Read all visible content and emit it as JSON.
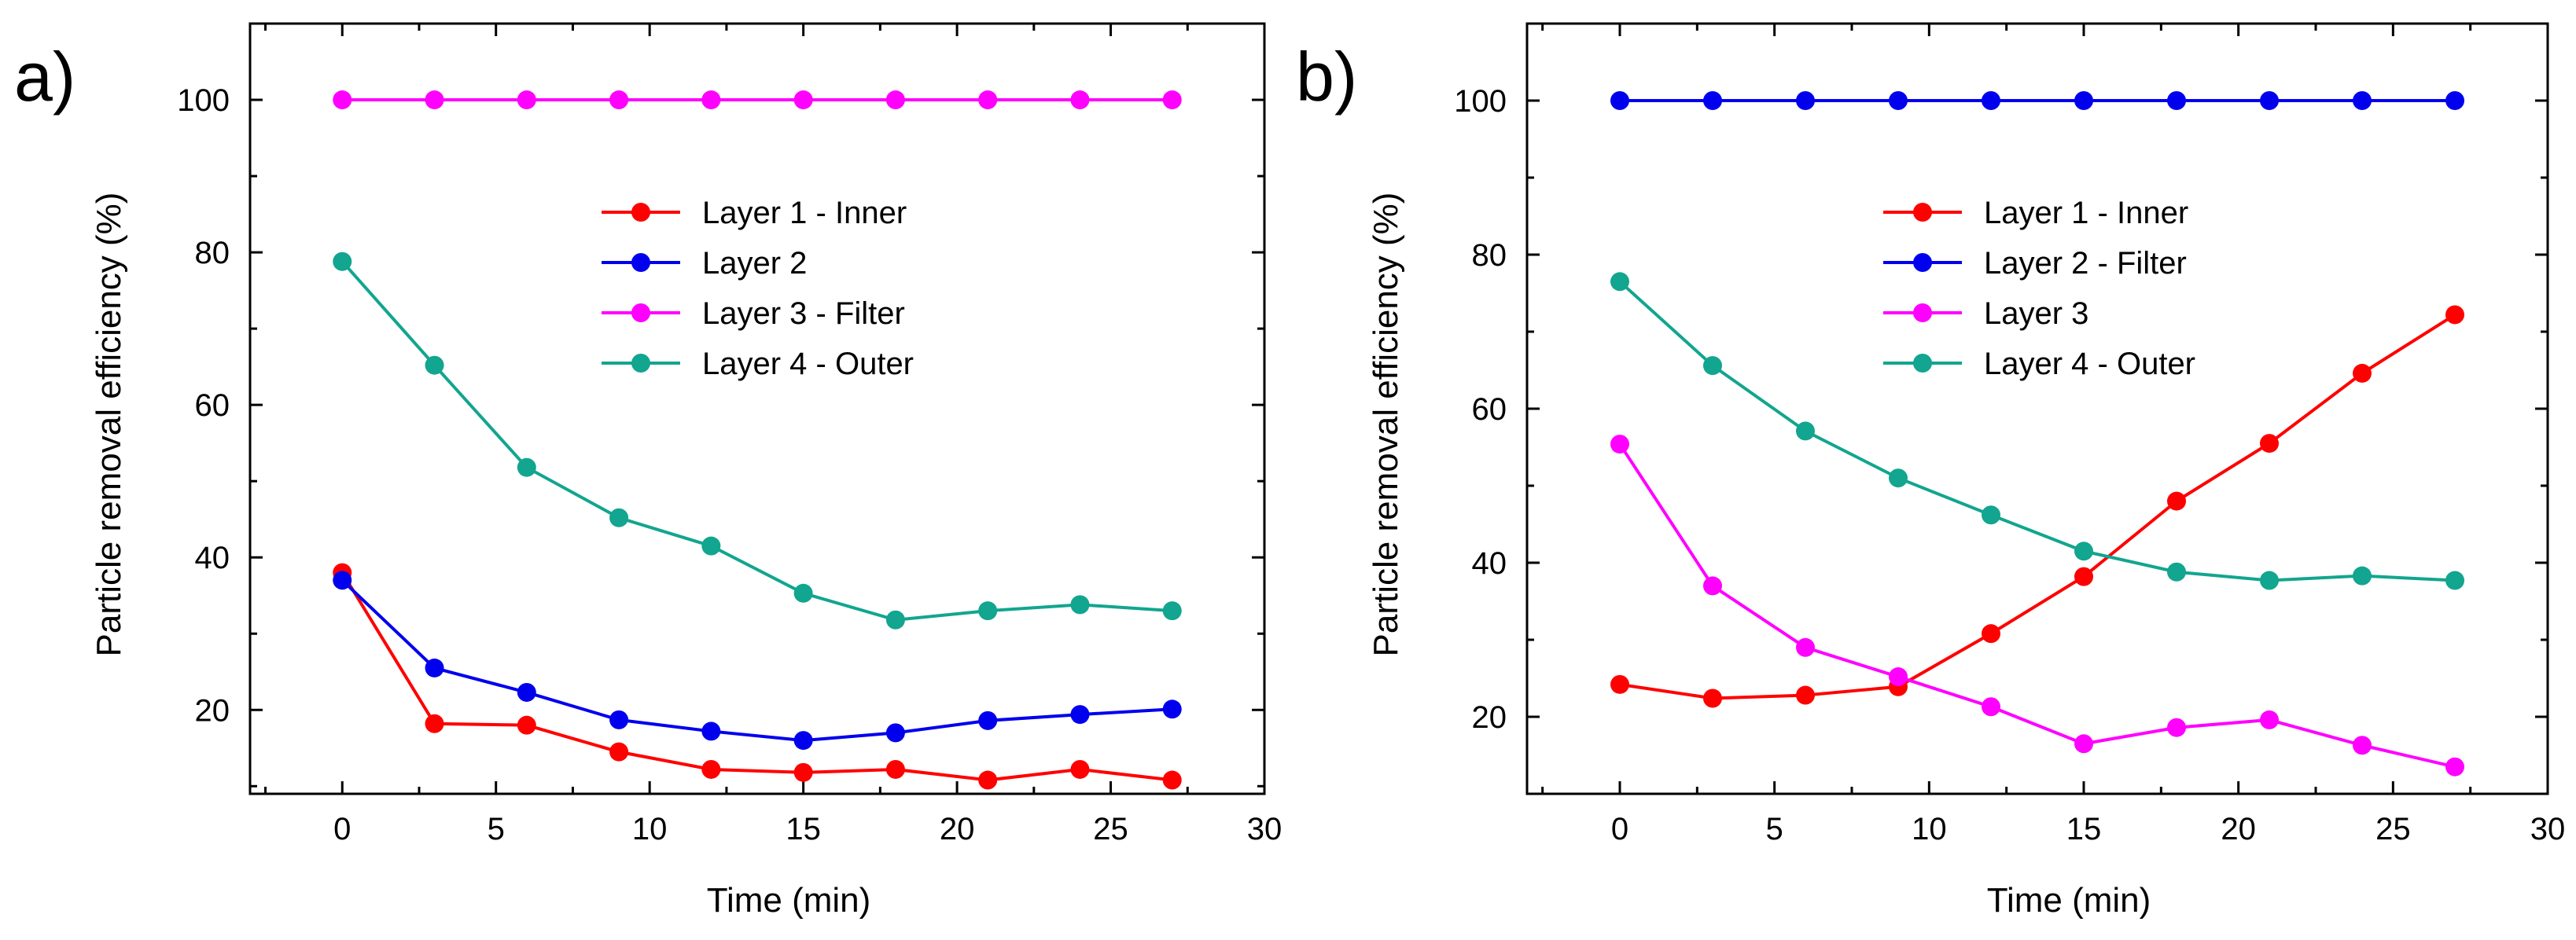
{
  "chart_data": [
    {
      "panel_label": "a)",
      "type": "line",
      "xlabel": "Time (min)",
      "ylabel": "Particle removal efficiency (%)",
      "xlim": [
        -3,
        30
      ],
      "ylim": [
        9,
        110
      ],
      "xticks": [
        0,
        5,
        10,
        15,
        20,
        25,
        30
      ],
      "yticks": [
        20,
        40,
        60,
        80,
        100
      ],
      "x": [
        0,
        3,
        6,
        9,
        12,
        15,
        18,
        21,
        24,
        27
      ],
      "legend_position": "center-right",
      "series": [
        {
          "name": "Layer 1 - Inner",
          "color": "#ff0000",
          "values": [
            38,
            18.2,
            18,
            14.5,
            12.2,
            11.8,
            12.2,
            10.8,
            12.2,
            10.8
          ]
        },
        {
          "name": "Layer 2",
          "color": "#0000ee",
          "values": [
            37,
            25.5,
            22.3,
            18.7,
            17.2,
            16,
            17,
            18.6,
            19.4,
            20.1
          ]
        },
        {
          "name": "Layer 3 - Filter",
          "color": "#ff00ff",
          "values": [
            100,
            100,
            100,
            100,
            100,
            100,
            100,
            100,
            100,
            100
          ]
        },
        {
          "name": "Layer 4 - Outer",
          "color": "#12a58f",
          "values": [
            78.8,
            65.2,
            51.8,
            45.2,
            41.5,
            35.3,
            31.8,
            33,
            33.8,
            33
          ]
        }
      ]
    },
    {
      "panel_label": "b)",
      "type": "line",
      "xlabel": "Time (min)",
      "ylabel": "Particle removal efficiency (%)",
      "xlim": [
        -3,
        30
      ],
      "ylim": [
        10,
        110
      ],
      "xticks": [
        0,
        5,
        10,
        15,
        20,
        25,
        30
      ],
      "yticks": [
        20,
        40,
        60,
        80,
        100
      ],
      "x": [
        0,
        3,
        6,
        9,
        12,
        15,
        18,
        21,
        24,
        27
      ],
      "legend_position": "top-right",
      "series": [
        {
          "name": "Layer 1 - Inner",
          "color": "#ff0000",
          "values": [
            24.2,
            22.4,
            22.8,
            23.9,
            30.8,
            38.2,
            48,
            55.5,
            64.6,
            72.2
          ]
        },
        {
          "name": "Layer 2 - Filter",
          "color": "#0000ee",
          "values": [
            100,
            100,
            100,
            100,
            100,
            100,
            100,
            100,
            100,
            100
          ]
        },
        {
          "name": "Layer 3",
          "color": "#ff00ff",
          "values": [
            55.4,
            37,
            29,
            25.2,
            21.3,
            16.5,
            18.6,
            19.6,
            16.3,
            13.5
          ]
        },
        {
          "name": "Layer 4 - Outer",
          "color": "#12a58f",
          "values": [
            76.5,
            65.6,
            57.1,
            51,
            46.2,
            41.5,
            38.8,
            37.7,
            38.3,
            37.7
          ]
        }
      ]
    }
  ]
}
